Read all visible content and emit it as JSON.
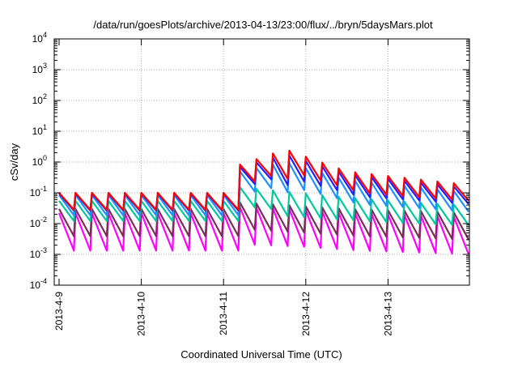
{
  "chart_data": {
    "type": "line",
    "title": "/data/run/goesPlots/archive/2013-04-13/23:00/flux/../bryn/5daysMars.plot",
    "xlabel": "Coordinated Universal Time (UTC)",
    "ylabel": "cSv/day",
    "yscale": "log",
    "ylim": [
      0.0001,
      10000
    ],
    "xlim_days": [
      0,
      5
    ],
    "grid": true,
    "legend": "none",
    "x_ticks": [
      {
        "label": "2013-4-9",
        "day": 0
      },
      {
        "label": "2013-4-10",
        "day": 1
      },
      {
        "label": "2013-4-11",
        "day": 2
      },
      {
        "label": "2013-4-12",
        "day": 3
      },
      {
        "label": "2013-4-13",
        "day": 4
      }
    ],
    "y_ticks": [
      {
        "exp": "-4",
        "value": 0.0001
      },
      {
        "exp": "-3",
        "value": 0.001
      },
      {
        "exp": "-2",
        "value": 0.01
      },
      {
        "exp": "-1",
        "value": 0.1
      },
      {
        "exp": "0",
        "value": 1
      },
      {
        "exp": "1",
        "value": 10
      },
      {
        "exp": "2",
        "value": 100
      },
      {
        "exp": "3",
        "value": 1000
      },
      {
        "exp": "4",
        "value": 10000
      }
    ],
    "sawtooth_period_hours": 4.8,
    "series_colors": [
      "#ff0000",
      "#2020ff",
      "#1e90ff",
      "#00c8a0",
      "#7e2a5a",
      "#ff00ff"
    ],
    "series": [
      {
        "color": "#ff0000",
        "peaks": [
          [
            0,
            0.1
          ],
          [
            2.0,
            0.1
          ],
          [
            2.02,
            0.1
          ],
          [
            2.12,
            0.7
          ],
          [
            2.75,
            2.6
          ],
          [
            3.5,
            0.5
          ],
          [
            4.5,
            0.25
          ],
          [
            5,
            0.18
          ]
        ],
        "ratio_low": [
          [
            0,
            0.28
          ],
          [
            2.4,
            0.28
          ],
          [
            2.44,
            0.14
          ],
          [
            5,
            0.28
          ]
        ]
      },
      {
        "color": "#2020ff",
        "peaks": [
          [
            0,
            0.095
          ],
          [
            2.0,
            0.095
          ],
          [
            2.02,
            0.095
          ],
          [
            2.12,
            0.6
          ],
          [
            2.75,
            1.8
          ],
          [
            3.5,
            0.4
          ],
          [
            4.5,
            0.2
          ],
          [
            5,
            0.14
          ]
        ],
        "ratio_low": [
          [
            0,
            0.28
          ],
          [
            2.4,
            0.28
          ],
          [
            2.44,
            0.12
          ],
          [
            5,
            0.28
          ]
        ]
      },
      {
        "color": "#1e90ff",
        "peaks": [
          [
            0,
            0.085
          ],
          [
            2.0,
            0.085
          ],
          [
            2.02,
            0.085
          ],
          [
            2.12,
            0.45
          ],
          [
            2.75,
            1.0
          ],
          [
            3.5,
            0.26
          ],
          [
            4.5,
            0.14
          ],
          [
            5,
            0.1
          ]
        ],
        "ratio_low": [
          [
            0,
            0.22
          ],
          [
            2.4,
            0.22
          ],
          [
            2.44,
            0.12
          ],
          [
            5,
            0.22
          ]
        ]
      },
      {
        "color": "#00c8a0",
        "peaks": [
          [
            0,
            0.055
          ],
          [
            2.0,
            0.055
          ],
          [
            2.02,
            0.055
          ],
          [
            2.12,
            0.16
          ],
          [
            2.75,
            0.11
          ],
          [
            3.5,
            0.07
          ],
          [
            4.5,
            0.045
          ],
          [
            5,
            0.04
          ]
        ],
        "ratio_low": [
          [
            0,
            0.22
          ],
          [
            2.4,
            0.22
          ],
          [
            2.44,
            0.14
          ],
          [
            5,
            0.22
          ]
        ]
      },
      {
        "color": "#7e2a5a",
        "peaks": [
          [
            0,
            0.03
          ],
          [
            2.0,
            0.03
          ],
          [
            2.02,
            0.03
          ],
          [
            2.12,
            0.05
          ],
          [
            2.75,
            0.04
          ],
          [
            3.5,
            0.03
          ],
          [
            4.5,
            0.025
          ],
          [
            5,
            0.022
          ]
        ],
        "ratio_low": [
          [
            0,
            0.13
          ],
          [
            2.4,
            0.13
          ],
          [
            2.44,
            0.13
          ],
          [
            5,
            0.13
          ]
        ]
      },
      {
        "color": "#ff00ff",
        "peaks": [
          [
            0,
            0.022
          ],
          [
            2.0,
            0.022
          ],
          [
            2.02,
            0.022
          ],
          [
            2.12,
            0.035
          ],
          [
            2.75,
            0.03
          ],
          [
            3.5,
            0.022
          ],
          [
            4.5,
            0.018
          ],
          [
            5,
            0.016
          ]
        ],
        "ratio_low": [
          [
            0,
            0.06
          ],
          [
            2.4,
            0.06
          ],
          [
            2.44,
            0.06
          ],
          [
            5,
            0.06
          ]
        ]
      }
    ]
  }
}
